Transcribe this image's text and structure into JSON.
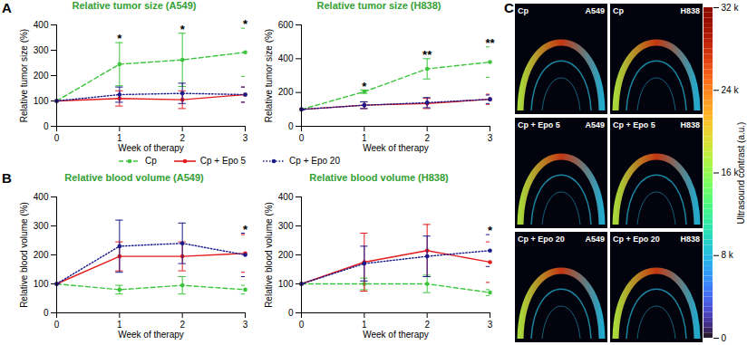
{
  "chart_data": [
    {
      "type": "line",
      "title": "Relative tumor size (A549)",
      "x_label": "Week of therapy",
      "y_label": "Relative tumor size (%)",
      "x": [
        0,
        1,
        2,
        3
      ],
      "xlim": [
        0,
        3
      ],
      "xticks": [
        0,
        1,
        2,
        3
      ],
      "ylim": [
        0,
        400
      ],
      "yticks": [
        0,
        100,
        200,
        300,
        400
      ],
      "series": [
        {
          "name": "Cp",
          "color": "#3cc43c",
          "line_style": "dashed",
          "marker": "circle",
          "values": [
            100,
            245,
            262,
            292
          ],
          "errors": [
            0,
            85,
            105,
            95
          ]
        },
        {
          "name": "Cp + Epo 5",
          "color": "#e41a1c",
          "line_style": "solid",
          "marker": "circle",
          "values": [
            100,
            110,
            105,
            125
          ],
          "errors": [
            0,
            30,
            35,
            30
          ]
        },
        {
          "name": "Cp + Epo 20",
          "color": "#1a1a8c",
          "line_style": "dotted",
          "marker": "circle",
          "values": [
            100,
            125,
            130,
            125
          ],
          "errors": [
            0,
            30,
            40,
            30
          ]
        }
      ],
      "annotations": [
        {
          "x": 1,
          "text": "*"
        },
        {
          "x": 2,
          "text": "*"
        },
        {
          "x": 3,
          "text": "*"
        }
      ]
    },
    {
      "type": "line",
      "title": "Relative tumor size (H838)",
      "x_label": "Week of therapy",
      "y_label": "Relative tumor size (%)",
      "x": [
        0,
        1,
        2,
        3
      ],
      "xlim": [
        0,
        3
      ],
      "xticks": [
        0,
        1,
        2,
        3
      ],
      "ylim": [
        0,
        600
      ],
      "yticks": [
        0,
        200,
        400,
        600
      ],
      "series": [
        {
          "name": "Cp",
          "color": "#3cc43c",
          "line_style": "dashed",
          "marker": "circle",
          "values": [
            100,
            205,
            340,
            380
          ],
          "errors": [
            0,
            10,
            60,
            90
          ]
        },
        {
          "name": "Cp + Epo 5",
          "color": "#e41a1c",
          "line_style": "solid",
          "marker": "circle",
          "values": [
            100,
            125,
            135,
            160
          ],
          "errors": [
            0,
            20,
            30,
            30
          ]
        },
        {
          "name": "Cp + Epo 20",
          "color": "#1a1a8c",
          "line_style": "dotted",
          "marker": "circle",
          "values": [
            100,
            125,
            140,
            160
          ],
          "errors": [
            0,
            20,
            30,
            25
          ]
        }
      ],
      "annotations": [
        {
          "x": 1,
          "text": "*"
        },
        {
          "x": 2,
          "text": "**"
        },
        {
          "x": 3,
          "text": "**"
        }
      ]
    },
    {
      "type": "line",
      "title": "Relative blood volume (A549)",
      "x_label": "Week of therapy",
      "y_label": "Relative blood volume (%)",
      "x": [
        0,
        1,
        2,
        3
      ],
      "xlim": [
        0,
        3
      ],
      "xticks": [
        0,
        1,
        2,
        3
      ],
      "ylim": [
        0,
        400
      ],
      "yticks": [
        0,
        100,
        200,
        300,
        400
      ],
      "series": [
        {
          "name": "Cp",
          "color": "#3cc43c",
          "line_style": "dashed",
          "marker": "circle",
          "values": [
            100,
            80,
            95,
            80
          ],
          "errors": [
            0,
            15,
            30,
            15
          ]
        },
        {
          "name": "Cp + Epo 5",
          "color": "#e41a1c",
          "line_style": "solid",
          "marker": "circle",
          "values": [
            100,
            195,
            195,
            205
          ],
          "errors": [
            0,
            50,
            50,
            65
          ]
        },
        {
          "name": "Cp + Epo 20",
          "color": "#1a1a8c",
          "line_style": "dotted",
          "marker": "circle",
          "values": [
            100,
            230,
            240,
            200
          ],
          "errors": [
            0,
            90,
            70,
            75
          ]
        }
      ],
      "annotations": [
        {
          "x": 3,
          "text": "*"
        }
      ]
    },
    {
      "type": "line",
      "title": "Relative blood volume (H838)",
      "x_label": "Week of therapy",
      "y_label": "Relative blood volume (%)",
      "x": [
        0,
        1,
        2,
        3
      ],
      "xlim": [
        0,
        3
      ],
      "xticks": [
        0,
        1,
        2,
        3
      ],
      "ylim": [
        0,
        400
      ],
      "yticks": [
        0,
        100,
        200,
        300,
        400
      ],
      "series": [
        {
          "name": "Cp",
          "color": "#3cc43c",
          "line_style": "dashed",
          "marker": "circle",
          "values": [
            100,
            100,
            100,
            70
          ],
          "errors": [
            0,
            20,
            30,
            10
          ]
        },
        {
          "name": "Cp + Epo 5",
          "color": "#e41a1c",
          "line_style": "solid",
          "marker": "circle",
          "values": [
            100,
            175,
            215,
            175
          ],
          "errors": [
            0,
            100,
            90,
            70
          ]
        },
        {
          "name": "Cp + Epo 20",
          "color": "#1a1a8c",
          "line_style": "dotted",
          "marker": "circle",
          "values": [
            100,
            170,
            195,
            215
          ],
          "errors": [
            0,
            60,
            70,
            55
          ]
        }
      ],
      "annotations": [
        {
          "x": 3,
          "text": "*"
        }
      ]
    }
  ],
  "panel_labels": [
    "A",
    "B",
    "C"
  ],
  "panel_c": {
    "images": [
      {
        "treatment": "Cp",
        "cell_line": "A549"
      },
      {
        "treatment": "Cp",
        "cell_line": "H838"
      },
      {
        "treatment": "Cp + Epo 5",
        "cell_line": "A549"
      },
      {
        "treatment": "Cp + Epo 5",
        "cell_line": "H838"
      },
      {
        "treatment": "Cp + Epo 20",
        "cell_line": "A549"
      },
      {
        "treatment": "Cp + Epo 20",
        "cell_line": "H838"
      }
    ],
    "colorbar": {
      "label": "Ultrasound contrast (a.u.)",
      "range": [
        0,
        32000
      ],
      "ticks": [
        {
          "value": 0,
          "label": "0"
        },
        {
          "value": 8000,
          "label": "8 k"
        },
        {
          "value": 16000,
          "label": "16 k"
        },
        {
          "value": 24000,
          "label": "24 k"
        },
        {
          "value": 32000,
          "label": "32 k"
        }
      ]
    }
  }
}
